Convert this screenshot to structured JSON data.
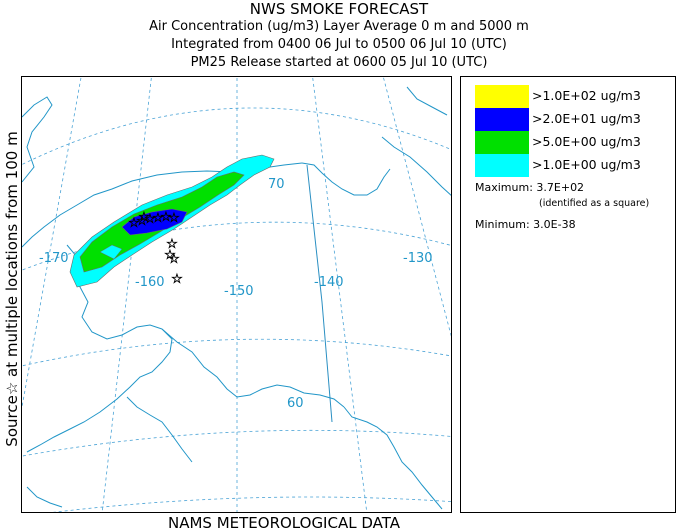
{
  "title": {
    "line1": "NWS SMOKE FORECAST",
    "line2": "Air Concentration (ug/m3) Layer Average    0 m and  5000 m",
    "line3": "Integrated from 0400 06 Jul to 0500 06 Jul 10 (UTC)",
    "line4": "PM25 Release started at 0600 05 Jul 10 (UTC)"
  },
  "side_label": "Source☆  at multiple locations   from   100 m",
  "footer": "NAMS METEOROLOGICAL DATA",
  "map": {
    "longitude_labels": [
      "-170",
      "-160",
      "-150",
      "-140",
      "-130"
    ],
    "latitude_labels": [
      "70",
      "60"
    ],
    "colors": {
      "land_outline": "#2196c8",
      "graticule": "#4aa3d6",
      "border": "#2a8fc2",
      "contour_outline": "#6b6b6b"
    }
  },
  "legend": {
    "items": [
      {
        "label": ">1.0E+02 ug/m3",
        "color": "#ffff00"
      },
      {
        "label": ">2.0E+01 ug/m3",
        "color": "#0000ff"
      },
      {
        "label": ">5.0E+00 ug/m3",
        "color": "#00e000"
      },
      {
        "label": ">1.0E+00 ug/m3",
        "color": "#00ffff"
      }
    ],
    "maximum_label": "Maximum: 3.7E+02",
    "maximum_note": "(identified as a square)",
    "minimum_label": "Minimum: 3.0E-38"
  }
}
